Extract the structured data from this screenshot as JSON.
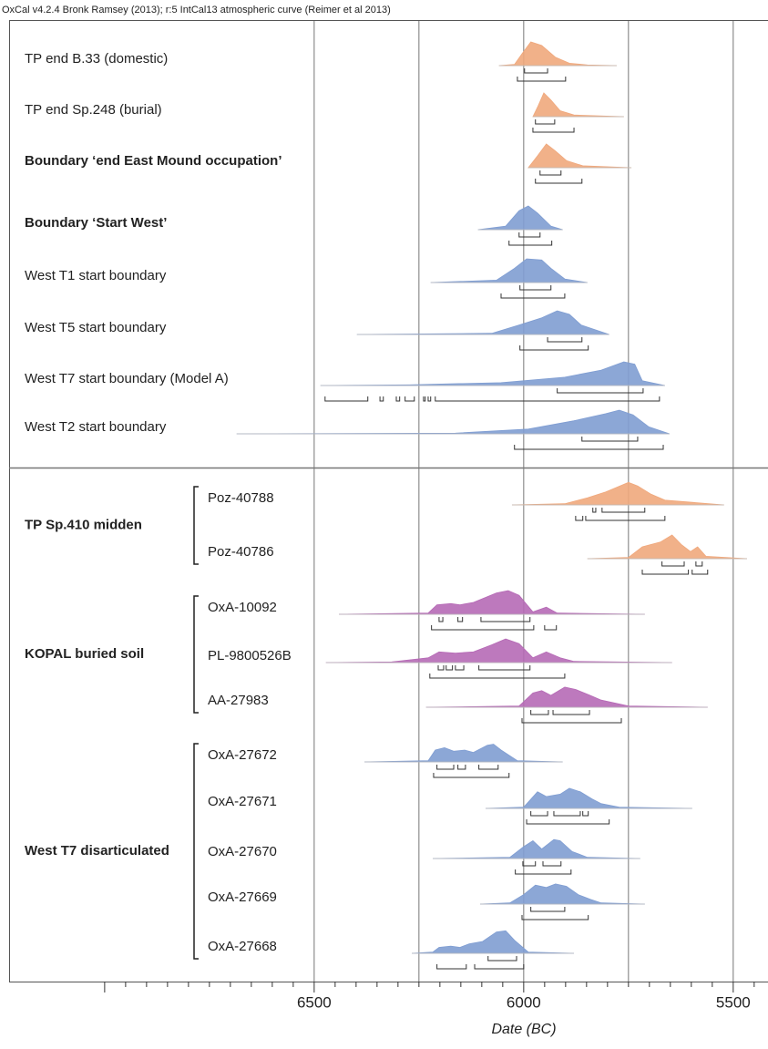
{
  "header": "OxCal v4.2.4 Bronk Ramsey (2013); r:5 IntCal13 atmospheric curve (Reimer et al 2013)",
  "chart_data": {
    "type": "multiplot",
    "x_label": "Date (BC)",
    "xlim": [
      7228,
      5417
    ],
    "xticks": [
      6500,
      6000,
      5500
    ],
    "grid_lines": [
      6500,
      6250,
      6000,
      5750,
      5500
    ],
    "minor_xticks": [
      7000,
      6950,
      6900,
      6850,
      6800,
      6750,
      6700,
      6650,
      6600,
      6550,
      6450,
      6400,
      6350,
      6300,
      6250,
      6200,
      6150,
      6100,
      6050,
      5950,
      5900,
      5850,
      5800,
      5750,
      5700,
      5650,
      5600,
      5550,
      5450
    ],
    "colors": {
      "orange": "#f0a87c",
      "blue": "#7f9dd2",
      "purple": "#b66ab6"
    },
    "rows": [
      {
        "name": "TP end B.33 (domestic)",
        "bold": false,
        "color": "orange",
        "curve": {
          "x": [
            6059,
            6022,
            6004,
            5983,
            5957,
            5924,
            5891,
            5848,
            5778
          ],
          "y": [
            0,
            0.05,
            0.5,
            1,
            0.85,
            0.35,
            0.1,
            0.03,
            0
          ]
        },
        "range_68": [
          [
            5998,
            5943
          ]
        ],
        "range_95": [
          [
            6015,
            5900
          ]
        ]
      },
      {
        "name": "TP end Sp.248 (burial)",
        "bold": false,
        "color": "orange",
        "curve": {
          "x": [
            5978,
            5967,
            5952,
            5935,
            5913,
            5880,
            5761
          ],
          "y": [
            0,
            0.4,
            1,
            0.7,
            0.25,
            0.07,
            0
          ]
        },
        "range_68": [
          [
            5972,
            5926
          ]
        ],
        "range_95": [
          [
            5978,
            5880
          ]
        ]
      },
      {
        "name": "Boundary ‘end East Mound occupation’",
        "bold": true,
        "color": "orange",
        "curve": {
          "x": [
            5989,
            5967,
            5946,
            5924,
            5898,
            5859,
            5743
          ],
          "y": [
            0,
            0.5,
            1,
            0.7,
            0.3,
            0.08,
            0
          ]
        },
        "range_68": [
          [
            5961,
            5911
          ]
        ],
        "range_95": [
          [
            5972,
            5861
          ]
        ]
      },
      {
        "name": "Boundary ‘Start West’",
        "bold": true,
        "color": "blue",
        "curve": {
          "x": [
            6109,
            6043,
            6011,
            5989,
            5967,
            5935,
            5907
          ],
          "y": [
            0,
            0.15,
            0.8,
            1,
            0.7,
            0.15,
            0
          ]
        },
        "range_68": [
          [
            6011,
            5961
          ]
        ],
        "range_95": [
          [
            6035,
            5933
          ]
        ]
      },
      {
        "name": "West T1 start boundary",
        "bold": false,
        "color": "blue",
        "curve": {
          "x": [
            6222,
            6065,
            6022,
            5993,
            5957,
            5935,
            5902,
            5848
          ],
          "y": [
            0,
            0.1,
            0.6,
            1,
            0.95,
            0.6,
            0.15,
            0
          ]
        },
        "range_68": [
          [
            6009,
            5935
          ]
        ],
        "range_95": [
          [
            6054,
            5902
          ]
        ]
      },
      {
        "name": "West T5 start boundary",
        "bold": false,
        "color": "blue",
        "curve": {
          "x": [
            6398,
            6076,
            6011,
            5957,
            5920,
            5891,
            5863,
            5796
          ],
          "y": [
            0,
            0.05,
            0.4,
            0.7,
            1,
            0.85,
            0.4,
            0
          ]
        },
        "range_68": [
          [
            5943,
            5861
          ]
        ],
        "range_95": [
          [
            6009,
            5846
          ]
        ]
      },
      {
        "name": "West T7 start boundary (Model A)",
        "bold": false,
        "color": "blue",
        "curve": {
          "x": [
            6485,
            6272,
            6054,
            5902,
            5815,
            5761,
            5735,
            5717,
            5663
          ],
          "y": [
            0,
            0.03,
            0.12,
            0.35,
            0.65,
            1,
            0.9,
            0.2,
            0
          ]
        },
        "range_68": [
          [
            5920,
            5715
          ]
        ],
        "range_95": [
          [
            6474,
            6372
          ],
          [
            6343,
            6335
          ],
          [
            6304,
            6296
          ],
          [
            6283,
            6261
          ],
          [
            6239,
            6235
          ],
          [
            6228,
            6222
          ],
          [
            6211,
            5676
          ]
        ]
      },
      {
        "name": "West T2 start boundary",
        "bold": false,
        "color": "blue",
        "curve": {
          "x": [
            6685,
            6163,
            5989,
            5880,
            5804,
            5772,
            5739,
            5702,
            5652
          ],
          "y": [
            0,
            0.03,
            0.2,
            0.55,
            0.85,
            1,
            0.8,
            0.3,
            0
          ]
        },
        "range_68": [
          [
            5861,
            5728
          ]
        ],
        "range_95": [
          [
            6022,
            5667
          ]
        ]
      }
    ],
    "groups": [
      {
        "name": "TP Sp.410 midden",
        "rows": [
          {
            "name": "Poz-40788",
            "color": "orange",
            "curve": {
              "x": [
                6028,
                5902,
                5848,
                5804,
                5750,
                5728,
                5696,
                5663,
                5522
              ],
              "y": [
                0,
                0.05,
                0.3,
                0.55,
                0.95,
                0.8,
                0.45,
                0.2,
                0
              ]
            },
            "range_68": [
              [
                5835,
                5828
              ],
              [
                5813,
                5711
              ]
            ],
            "range_95": [
              [
                5876,
                5859
              ],
              [
                5852,
                5663
              ]
            ]
          },
          {
            "name": "Poz-40786",
            "color": "orange",
            "curve": {
              "x": [
                5848,
                5750,
                5717,
                5674,
                5646,
                5624,
                5602,
                5585,
                5565,
                5467
              ],
              "y": [
                0,
                0.05,
                0.5,
                0.7,
                1,
                0.6,
                0.3,
                0.5,
                0.1,
                0
              ]
            },
            "range_68": [
              [
                5670,
                5617
              ],
              [
                5589,
                5574
              ]
            ],
            "range_95": [
              [
                5717,
                5607
              ],
              [
                5598,
                5561
              ]
            ]
          }
        ]
      },
      {
        "name": "KOPAL buried soil",
        "rows": [
          {
            "name": "OxA-10092",
            "color": "purple",
            "curve": {
              "x": [
                6441,
                6228,
                6207,
                6174,
                6152,
                6120,
                6065,
                6037,
                6011,
                5978,
                5946,
                5920,
                5711
              ],
              "y": [
                0,
                0.05,
                0.4,
                0.45,
                0.4,
                0.5,
                0.9,
                1,
                0.8,
                0.1,
                0.3,
                0.05,
                0
              ]
            },
            "range_68": [
              [
                6202,
                6193
              ],
              [
                6157,
                6146
              ],
              [
                6102,
                5985
              ]
            ],
            "range_95": [
              [
                6220,
                5976
              ],
              [
                5950,
                5922
              ]
            ]
          },
          {
            "name": "PL-9800526B",
            "color": "purple",
            "curve": {
              "x": [
                6472,
                6315,
                6228,
                6202,
                6163,
                6120,
                6076,
                6043,
                6011,
                5978,
                5946,
                5913,
                5880,
                5646
              ],
              "y": [
                0,
                0.03,
                0.2,
                0.45,
                0.4,
                0.45,
                0.75,
                1,
                0.8,
                0.2,
                0.45,
                0.2,
                0.05,
                0
              ]
            },
            "range_68": [
              [
                6204,
                6191
              ],
              [
                6185,
                6170
              ],
              [
                6163,
                6143
              ],
              [
                6107,
                5985
              ]
            ],
            "range_95": [
              [
                6224,
                5902
              ]
            ]
          },
          {
            "name": "AA-27983",
            "color": "purple",
            "curve": {
              "x": [
                6233,
                6011,
                5978,
                5957,
                5935,
                5902,
                5876,
                5848,
                5815,
                5750,
                5561
              ],
              "y": [
                0,
                0.05,
                0.6,
                0.7,
                0.5,
                0.85,
                0.75,
                0.55,
                0.3,
                0.05,
                0
              ]
            },
            "range_68": [
              [
                5983,
                5941
              ],
              [
                5930,
                5843
              ]
            ],
            "range_95": [
              [
                6004,
                5767
              ]
            ]
          }
        ]
      },
      {
        "name": "West T7 disarticulated",
        "rows": [
          {
            "name": "OxA-27672",
            "color": "blue",
            "curve": {
              "x": [
                6380,
                6228,
                6211,
                6189,
                6167,
                6141,
                6120,
                6087,
                6072,
                6054,
                6015,
                5907
              ],
              "y": [
                0,
                0.05,
                0.5,
                0.6,
                0.45,
                0.5,
                0.4,
                0.7,
                0.75,
                0.5,
                0.05,
                0
              ]
            },
            "range_68": [
              [
                6207,
                6167
              ],
              [
                6157,
                6139
              ],
              [
                6107,
                6061
              ]
            ],
            "range_95": [
              [
                6215,
                6035
              ]
            ]
          },
          {
            "name": "OxA-27671",
            "color": "blue",
            "curve": {
              "x": [
                6091,
                6000,
                5967,
                5946,
                5913,
                5891,
                5865,
                5837,
                5815,
                5772,
                5598
              ],
              "y": [
                0,
                0.05,
                0.7,
                0.5,
                0.6,
                0.85,
                0.7,
                0.4,
                0.2,
                0.05,
                0
              ]
            },
            "range_68": [
              [
                5983,
                5943
              ],
              [
                5928,
                5865
              ],
              [
                5859,
                5846
              ]
            ],
            "range_95": [
              [
                5993,
                5796
              ]
            ]
          },
          {
            "name": "OxA-27670",
            "color": "blue",
            "curve": {
              "x": [
                6217,
                6033,
                6000,
                5978,
                5957,
                5928,
                5913,
                5885,
                5848,
                5722
              ],
              "y": [
                0,
                0.05,
                0.5,
                0.75,
                0.4,
                0.8,
                0.75,
                0.3,
                0.05,
                0
              ]
            },
            "range_68": [
              [
                6002,
                5972
              ],
              [
                5954,
                5911
              ]
            ],
            "range_95": [
              [
                6020,
                5887
              ]
            ]
          },
          {
            "name": "OxA-27669",
            "color": "blue",
            "curve": {
              "x": [
                6104,
                6033,
                6000,
                5972,
                5946,
                5924,
                5898,
                5870,
                5841,
                5815,
                5711
              ],
              "y": [
                0,
                0.05,
                0.4,
                0.8,
                0.7,
                0.85,
                0.75,
                0.4,
                0.2,
                0.05,
                0
              ]
            },
            "range_68": [
              [
                5983,
                5902
              ]
            ],
            "range_95": [
              [
                6004,
                5846
              ]
            ]
          },
          {
            "name": "OxA-27668",
            "color": "blue",
            "curve": {
              "x": [
                6267,
                6217,
                6202,
                6174,
                6152,
                6130,
                6098,
                6065,
                6043,
                6022,
                5989,
                5880
              ],
              "y": [
                0,
                0.05,
                0.25,
                0.3,
                0.25,
                0.4,
                0.5,
                0.9,
                0.95,
                0.55,
                0.05,
                0
              ]
            },
            "range_68": [
              [
                6085,
                6017
              ]
            ],
            "range_95": [
              [
                6207,
                6137
              ],
              [
                6117,
                6000
              ]
            ]
          }
        ]
      }
    ]
  }
}
